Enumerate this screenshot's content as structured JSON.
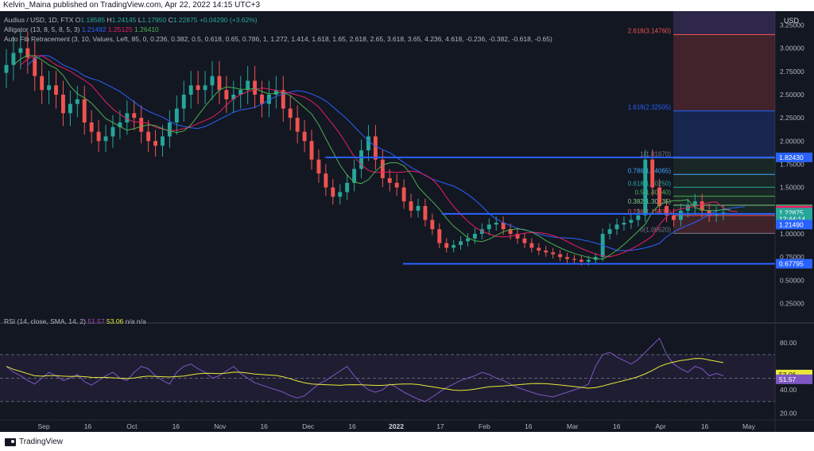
{
  "header": {
    "publisher_line": "Kelvin_Maina published on TradingView.com, Apr 22, 2022 14:15 UTC+3"
  },
  "footer": {
    "brand": "TradingView"
  },
  "legend": {
    "symbol": "Audius / USD, 1D, FTX",
    "o_label": "O",
    "o_value": "1.18585",
    "h_label": "H",
    "h_value": "1.24145",
    "l_label": "L",
    "l_value": "1.17950",
    "c_label": "C",
    "c_value": "1.22875",
    "change": "+0.04290 (+3.62%)",
    "alligator_label": "Alligator (13, 8, 5, 8, 5, 3)",
    "alligator_jaw": "1.21492",
    "alligator_teeth": "1.25125",
    "alligator_lips": "1.26410",
    "fib_label": "Auto Fib Retracement (3, 10, Values, Left, 85, 0, 0.236, 0.382, 0.5, 0.618, 0.65, 0.786, 1, 1.272, 1.414, 1.618, 1.65, 2.618, 2.65, 3.618, 3.65, 4.236, 4.618, -0.236, -0.382, -0.618, -0.65)",
    "rsi_label": "RSI (14, close, SMA, 14, 2)",
    "rsi_value": "51.57",
    "rsi_sma_value": "53.06",
    "rsi_na": "n/a n/a"
  },
  "currency": "USD",
  "colors": {
    "bg": "#131722",
    "up": "#26a69a",
    "down": "#ef5350",
    "jaw": "#2962ff",
    "teeth": "#e91e63",
    "lips": "#4caf50",
    "hline": "#2962ff",
    "rsi": "#7e57c2",
    "rsi_sma": "#e8e83a"
  },
  "chart_data": {
    "type": "candlestick",
    "price_axis_ticks": [
      "3.25000",
      "3.00000",
      "2.75000",
      "2.50000",
      "2.25000",
      "2.00000",
      "1.75000",
      "1.50000",
      "1.25000",
      "1.00000",
      "0.75000",
      "0.50000",
      "0.25000"
    ],
    "price_tick_values": [
      3.25,
      3.0,
      2.75,
      2.5,
      2.25,
      2.0,
      1.75,
      1.5,
      1.25,
      1.0,
      0.75,
      0.5,
      0.25
    ],
    "ylim": [
      0.1,
      3.4
    ],
    "x_ticks": [
      "Sep",
      "16",
      "Oct",
      "16",
      "Nov",
      "16",
      "Dec",
      "16",
      "2022",
      "17",
      "Feb",
      "16",
      "Mar",
      "16",
      "Apr",
      "16",
      "May"
    ],
    "price_badges": [
      {
        "label": "1.82430",
        "value": 1.8243,
        "color": "#2962ff"
      },
      {
        "label": "1.26410",
        "value": 1.2641,
        "color": "#4caf50"
      },
      {
        "label": "1.25620",
        "value": 1.2562,
        "color": "#26a69a"
      },
      {
        "label": "1.25125",
        "value": 1.25125,
        "color": "#e91e63"
      },
      {
        "label": "1.22875",
        "value": 1.22875,
        "color": "#26a69a"
      },
      {
        "label": "12:44:14",
        "value": 1.16,
        "color": "#26a69a"
      },
      {
        "label": "1.21490",
        "value": 1.1,
        "color": "#2962ff"
      },
      {
        "label": "0.67795",
        "value": 0.67795,
        "color": "#2962ff"
      }
    ],
    "horizontal_lines": [
      {
        "value": 1.8243,
        "from": 0.42,
        "to": 1.0
      },
      {
        "value": 1.2149,
        "from": 0.57,
        "to": 1.0
      },
      {
        "value": 0.67795,
        "from": 0.52,
        "to": 1.0
      }
    ],
    "fib_levels": [
      {
        "label": "2.618(3.14760)",
        "value": 3.1476,
        "color": "#ef5350"
      },
      {
        "label": "1.618(2.32505)",
        "value": 2.32505,
        "color": "#2962ff"
      },
      {
        "label": "1(1.81670)",
        "value": 1.8167,
        "color": "#787b86"
      },
      {
        "label": "0.786(1.64065)",
        "value": 1.64065,
        "color": "#42a5f5"
      },
      {
        "label": "0.618(1.50250)",
        "value": 1.5025,
        "color": "#26a69a"
      },
      {
        "label": "0.5(1.40540)",
        "value": 1.4054,
        "color": "#4caf50"
      },
      {
        "label": "0.382(1.30835)",
        "value": 1.30835,
        "color": "#81c784"
      },
      {
        "label": "0.236(1.19835)",
        "value": 1.19835,
        "color": "#ef5350"
      },
      {
        "label": "0(1.00520)",
        "value": 1.0052,
        "color": "#787b86"
      }
    ],
    "rsi_axis_ticks": [
      "80.00",
      "40.00",
      "20.00"
    ],
    "rsi_tick_values": [
      80,
      40,
      20
    ],
    "rsi_ylim": [
      15,
      95
    ],
    "rsi_bands": {
      "upper": 70,
      "lower": 30,
      "mid": 50
    },
    "close_path": [
      2.82,
      2.95,
      3.0,
      2.9,
      2.7,
      2.55,
      2.6,
      2.5,
      2.3,
      2.4,
      2.45,
      2.2,
      2.1,
      2.0,
      2.05,
      2.15,
      2.2,
      2.3,
      2.25,
      2.1,
      2.0,
      1.95,
      2.05,
      2.2,
      2.35,
      2.5,
      2.6,
      2.55,
      2.6,
      2.7,
      2.55,
      2.45,
      2.5,
      2.55,
      2.65,
      2.5,
      2.4,
      2.5,
      2.55,
      2.35,
      2.25,
      2.1,
      2.0,
      1.8,
      1.65,
      1.5,
      1.4,
      1.45,
      1.55,
      1.7,
      1.9,
      2.05,
      1.8,
      1.6,
      1.55,
      1.5,
      1.35,
      1.25,
      1.3,
      1.15,
      1.05,
      0.9,
      0.85,
      0.88,
      0.92,
      0.95,
      1.0,
      1.05,
      1.1,
      1.12,
      1.05,
      1.0,
      0.95,
      0.9,
      0.85,
      0.82,
      0.8,
      0.78,
      0.75,
      0.73,
      0.72,
      0.7,
      0.72,
      0.75,
      1.0,
      1.05,
      1.1,
      1.12,
      1.15,
      1.2,
      1.8,
      1.5,
      1.3,
      1.2,
      1.15,
      1.25,
      1.3,
      1.35,
      1.25,
      1.2,
      1.22,
      1.23
    ],
    "rsi_path": [
      60,
      55,
      52,
      48,
      45,
      50,
      55,
      52,
      48,
      50,
      53,
      47,
      44,
      48,
      52,
      55,
      50,
      48,
      55,
      60,
      58,
      52,
      48,
      45,
      55,
      60,
      62,
      58,
      55,
      50,
      52,
      56,
      60,
      54,
      50,
      46,
      44,
      42,
      40,
      38,
      35,
      33,
      35,
      40,
      45,
      48,
      52,
      56,
      60,
      52,
      45,
      40,
      38,
      40,
      45,
      42,
      38,
      35,
      32,
      30,
      34,
      38,
      42,
      45,
      48,
      50,
      52,
      55,
      53,
      50,
      48,
      45,
      42,
      40,
      38,
      36,
      35,
      34,
      36,
      38,
      40,
      42,
      45,
      60,
      70,
      72,
      68,
      65,
      62,
      66,
      72,
      78,
      84,
      70,
      62,
      58,
      55,
      60,
      58,
      52,
      54,
      52
    ]
  }
}
